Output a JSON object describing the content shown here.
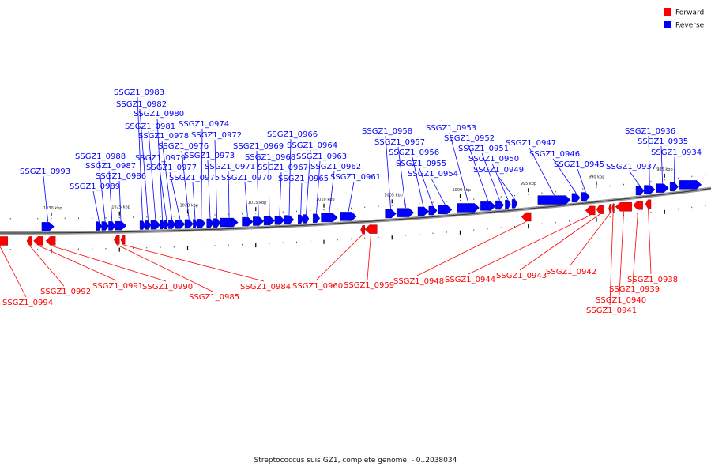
{
  "caption": "Streptococcus suis GZ1, complete genome. - 0..2038034",
  "colors": {
    "forward": "#ff0000",
    "reverse": "#0000ff",
    "backbone": "#999999"
  },
  "legend": [
    {
      "label": "Forward",
      "color": "#ff0000",
      "strand": "forward"
    },
    {
      "label": "Reverse",
      "color": "#0000ff",
      "strand": "reverse"
    }
  ],
  "scale_ticks": [
    {
      "kbp": 1030,
      "label": "1030 kbp"
    },
    {
      "kbp": 1025,
      "label": "1025 kbp"
    },
    {
      "kbp": 1020,
      "label": "1020 kbp"
    },
    {
      "kbp": 1015,
      "label": "1015 kbp"
    },
    {
      "kbp": 1010,
      "label": "1010 kbp"
    },
    {
      "kbp": 1005,
      "label": "1005 kbp"
    },
    {
      "kbp": 1000,
      "label": "1000 kbp"
    },
    {
      "kbp": 995,
      "label": "995 kbp"
    },
    {
      "kbp": 990,
      "label": "990 kbp"
    },
    {
      "kbp": 985,
      "label": "985 kbp"
    }
  ],
  "reverse_genes": [
    {
      "name": "SSGZ1_0993",
      "start": 1030.7,
      "end": 1029.8,
      "labeled": true
    },
    {
      "name": "SSGZ1_0989",
      "start": 1026.7,
      "end": 1026.3,
      "labeled": true
    },
    {
      "name": "SSGZ1_0988",
      "start": 1026.3,
      "end": 1025.8,
      "labeled": true
    },
    {
      "name": "SSGZ1_0987",
      "start": 1025.8,
      "end": 1025.3,
      "labeled": true
    },
    {
      "name": "SSGZ1_0986",
      "start": 1025.3,
      "end": 1024.5,
      "labeled": true
    },
    {
      "name": "SSGZ1_0983",
      "start": 1023.5,
      "end": 1023.1,
      "labeled": true
    },
    {
      "name": "SSGZ1_0982",
      "start": 1023.1,
      "end": 1022.7,
      "labeled": true
    },
    {
      "name": "SSGZ1_0981",
      "start": 1022.7,
      "end": 1022.0,
      "labeled": true
    },
    {
      "name": "SSGZ1_0980",
      "start": 1022.0,
      "end": 1021.7,
      "labeled": true
    },
    {
      "name": "SSGZ1_0979",
      "start": 1021.7,
      "end": 1021.4,
      "labeled": true
    },
    {
      "name": "SSGZ1_0978",
      "start": 1021.4,
      "end": 1020.9,
      "labeled": true
    },
    {
      "name": "SSGZ1_0977",
      "start": 1020.9,
      "end": 1020.2,
      "labeled": true
    },
    {
      "name": "SSGZ1_0976",
      "start": 1020.2,
      "end": 1019.6,
      "labeled": true
    },
    {
      "name": "SSGZ1_0975",
      "start": 1019.6,
      "end": 1019.3,
      "labeled": true
    },
    {
      "name": "SSGZ1_0974",
      "start": 1019.3,
      "end": 1018.7,
      "labeled": true
    },
    {
      "name": "SSGZ1_0973",
      "start": 1018.6,
      "end": 1018.1,
      "labeled": true
    },
    {
      "name": "SSGZ1_0972",
      "start": 1018.1,
      "end": 1017.6,
      "labeled": true
    },
    {
      "name": "SSGZ1_0971",
      "start": 1017.6,
      "end": 1016.3,
      "labeled": true
    },
    {
      "name": "SSGZ1_0970",
      "start": 1016.0,
      "end": 1015.2,
      "labeled": true
    },
    {
      "name": "SSGZ1_0969",
      "start": 1015.2,
      "end": 1014.4,
      "labeled": true
    },
    {
      "name": "SSGZ1_0968",
      "start": 1014.4,
      "end": 1013.6,
      "labeled": true
    },
    {
      "name": "SSGZ1_0967",
      "start": 1013.6,
      "end": 1012.9,
      "labeled": true
    },
    {
      "name": "SSGZ1_0966",
      "start": 1012.9,
      "end": 1012.2,
      "labeled": true
    },
    {
      "name": "SSGZ1_0965",
      "start": 1011.9,
      "end": 1011.5,
      "labeled": true
    },
    {
      "name": "SSGZ1_0964",
      "start": 1011.5,
      "end": 1011.1,
      "labeled": true
    },
    {
      "name": "SSGZ1_0963",
      "start": 1010.8,
      "end": 1010.3,
      "labeled": true
    },
    {
      "name": "SSGZ1_0962",
      "start": 1010.2,
      "end": 1009.0,
      "labeled": true
    },
    {
      "name": "SSGZ1_0961",
      "start": 1008.8,
      "end": 1007.6,
      "labeled": true
    },
    {
      "name": "SSGZ1_0958",
      "start": 1005.5,
      "end": 1004.7,
      "labeled": true
    },
    {
      "name": "SSGZ1_0957",
      "start": 1004.6,
      "end": 1003.4,
      "labeled": true
    },
    {
      "name": "SSGZ1_0956",
      "start": 1003.1,
      "end": 1002.3,
      "labeled": true
    },
    {
      "name": "SSGZ1_0955",
      "start": 1002.3,
      "end": 1001.7,
      "labeled": true
    },
    {
      "name": "SSGZ1_0954",
      "start": 1001.6,
      "end": 1000.6,
      "labeled": true
    },
    {
      "name": "SSGZ1_0953",
      "start": 1000.2,
      "end": 998.6,
      "labeled": true
    },
    {
      "name": "SSGZ1_0952",
      "start": 998.5,
      "end": 997.4,
      "labeled": true
    },
    {
      "name": "SSGZ1_0951",
      "start": 997.4,
      "end": 996.8,
      "labeled": true
    },
    {
      "name": "SSGZ1_0950",
      "start": 996.7,
      "end": 996.3,
      "labeled": true
    },
    {
      "name": "SSGZ1_0949",
      "start": 996.2,
      "end": 995.8,
      "labeled": true
    },
    {
      "name": "SSGZ1_0947",
      "start": 994.3,
      "end": 991.9,
      "labeled": true
    },
    {
      "name": "SSGZ1_0946",
      "start": 991.8,
      "end": 991.2,
      "labeled": true
    },
    {
      "name": "SSGZ1_0945",
      "start": 991.1,
      "end": 990.5,
      "labeled": true
    },
    {
      "name": "SSGZ1_0937",
      "start": 987.1,
      "end": 986.5,
      "labeled": true
    },
    {
      "name": "SSGZ1_0936",
      "start": 986.5,
      "end": 985.7,
      "labeled": true
    },
    {
      "name": "SSGZ1_0935",
      "start": 985.6,
      "end": 984.7,
      "labeled": true
    },
    {
      "name": "SSGZ1_0934",
      "start": 984.6,
      "end": 984.0,
      "labeled": true
    },
    {
      "name": "",
      "start": 983.9,
      "end": 982.3,
      "labeled": false
    }
  ],
  "forward_genes": [
    {
      "name": "SSGZ1_0994",
      "start": 1033.2,
      "end": 1034.4,
      "labeled": true
    },
    {
      "name": "SSGZ1_0992",
      "start": 1031.4,
      "end": 1031.8,
      "labeled": true
    },
    {
      "name": "SSGZ1_0991",
      "start": 1030.6,
      "end": 1031.3,
      "labeled": true
    },
    {
      "name": "SSGZ1_0990",
      "start": 1029.7,
      "end": 1030.4,
      "labeled": true
    },
    {
      "name": "SSGZ1_0985",
      "start": 1025.0,
      "end": 1025.4,
      "labeled": true
    },
    {
      "name": "SSGZ1_0984",
      "start": 1024.6,
      "end": 1024.9,
      "labeled": true
    },
    {
      "name": "SSGZ1_0960",
      "start": 1007.0,
      "end": 1007.3,
      "labeled": true
    },
    {
      "name": "SSGZ1_0959",
      "start": 1006.1,
      "end": 1007.0,
      "labeled": true
    },
    {
      "name": "SSGZ1_0948",
      "start": 994.8,
      "end": 995.5,
      "labeled": true
    },
    {
      "name": "SSGZ1_0944",
      "start": 990.1,
      "end": 990.8,
      "labeled": true
    },
    {
      "name": "SSGZ1_0943",
      "start": 989.5,
      "end": 990.0,
      "labeled": true
    },
    {
      "name": "SSGZ1_0942",
      "start": 988.9,
      "end": 989.1,
      "labeled": true
    },
    {
      "name": "SSGZ1_0941",
      "start": 988.7,
      "end": 988.85,
      "labeled": true
    },
    {
      "name": "SSGZ1_0940",
      "start": 987.4,
      "end": 988.6,
      "labeled": true
    },
    {
      "name": "SSGZ1_0939",
      "start": 986.6,
      "end": 987.3,
      "labeled": true
    },
    {
      "name": "SSGZ1_0938",
      "start": 986.0,
      "end": 986.4,
      "labeled": true
    }
  ]
}
